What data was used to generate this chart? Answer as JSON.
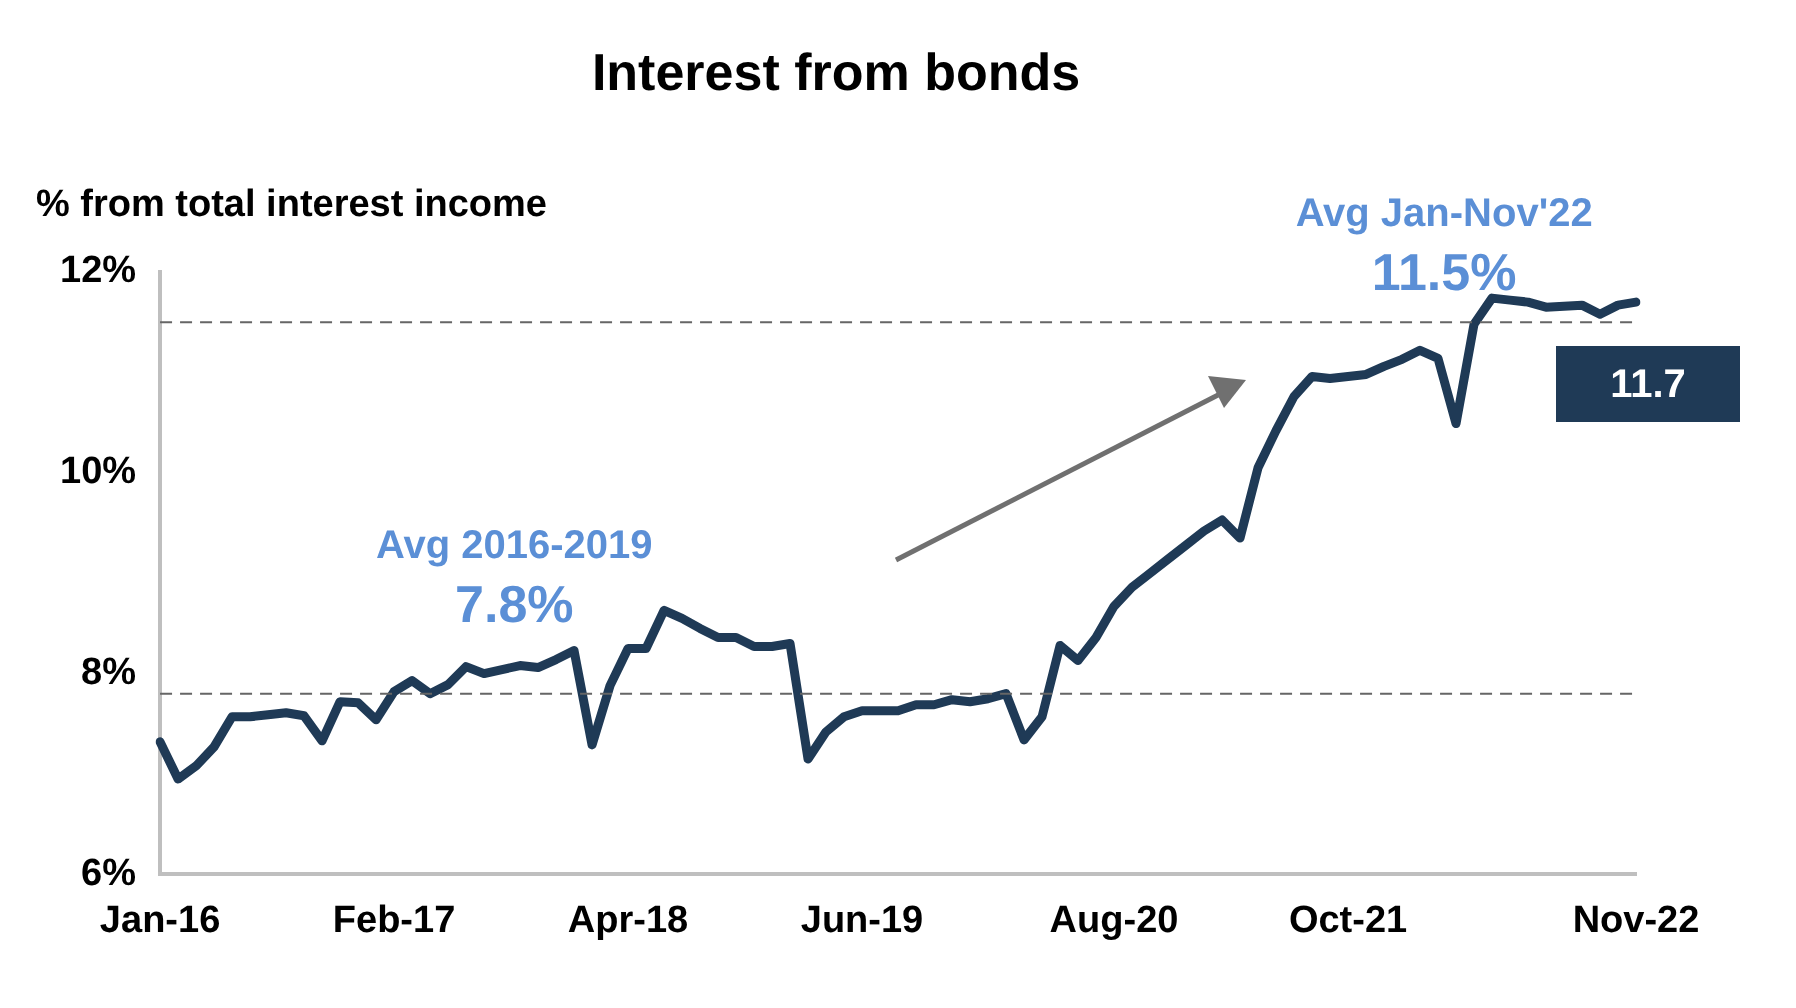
{
  "chart_data": {
    "type": "line",
    "title": "Interest from bonds",
    "subtitle": "% from total interest income",
    "categories": [
      "Jan-16",
      null,
      null,
      null,
      null,
      null,
      null,
      null,
      null,
      null,
      null,
      null,
      null,
      "Feb-17",
      null,
      null,
      null,
      null,
      null,
      null,
      null,
      null,
      null,
      null,
      null,
      null,
      "Apr-18",
      null,
      null,
      null,
      null,
      null,
      null,
      null,
      null,
      null,
      null,
      null,
      null,
      "Jun-19",
      null,
      null,
      null,
      null,
      null,
      null,
      null,
      null,
      null,
      null,
      null,
      null,
      null,
      "Aug-20",
      null,
      null,
      null,
      null,
      null,
      null,
      null,
      null,
      null,
      null,
      null,
      null,
      "Oct-21",
      null,
      null,
      null,
      null,
      null,
      null,
      null,
      null,
      null,
      null,
      null,
      null,
      null,
      null,
      null,
      "Nov-22"
    ],
    "series": [
      {
        "color": "#1f3a56",
        "values": [
          7.32,
          6.95,
          7.08,
          7.27,
          7.57,
          7.57,
          7.59,
          7.61,
          7.58,
          7.33,
          7.72,
          7.71,
          7.54,
          7.82,
          7.93,
          7.8,
          7.89,
          8.07,
          8.0,
          8.04,
          8.08,
          8.06,
          8.14,
          8.23,
          7.29,
          7.88,
          8.25,
          8.25,
          8.63,
          8.55,
          8.45,
          8.36,
          8.36,
          8.27,
          8.27,
          8.3,
          7.15,
          7.42,
          7.57,
          7.63,
          7.63,
          7.63,
          7.69,
          7.69,
          7.74,
          7.72,
          7.75,
          7.8,
          7.34,
          7.57,
          8.28,
          8.13,
          8.36,
          8.67,
          8.86,
          9.0,
          9.14,
          9.28,
          9.42,
          9.53,
          9.35,
          10.05,
          10.42,
          10.76,
          10.96,
          10.94,
          10.96,
          10.98,
          11.06,
          11.13,
          11.22,
          11.14,
          10.49,
          11.48,
          11.74,
          11.72,
          11.7,
          11.65,
          11.66,
          11.67,
          11.58,
          11.67,
          11.7
        ]
      }
    ],
    "ylim": [
      6,
      12
    ],
    "yticks": [
      {
        "value": 6,
        "label": "6%"
      },
      {
        "value": 8,
        "label": "8%"
      },
      {
        "value": 10,
        "label": "10%"
      },
      {
        "value": 12,
        "label": "12%"
      }
    ],
    "ref_lines": [
      {
        "axis": "y",
        "value": 7.8,
        "label": "Avg 2016-2019 7.8%",
        "color": "#666666",
        "line_style": "dashed"
      },
      {
        "axis": "y",
        "value": 11.5,
        "label": "Avg Jan-Nov'22 11.5%",
        "color": "#666666",
        "line_style": "dashed"
      }
    ],
    "annotations": [
      "11.7"
    ],
    "grid": false,
    "legend": false,
    "marker": "none",
    "line_style": "solid"
  }
}
